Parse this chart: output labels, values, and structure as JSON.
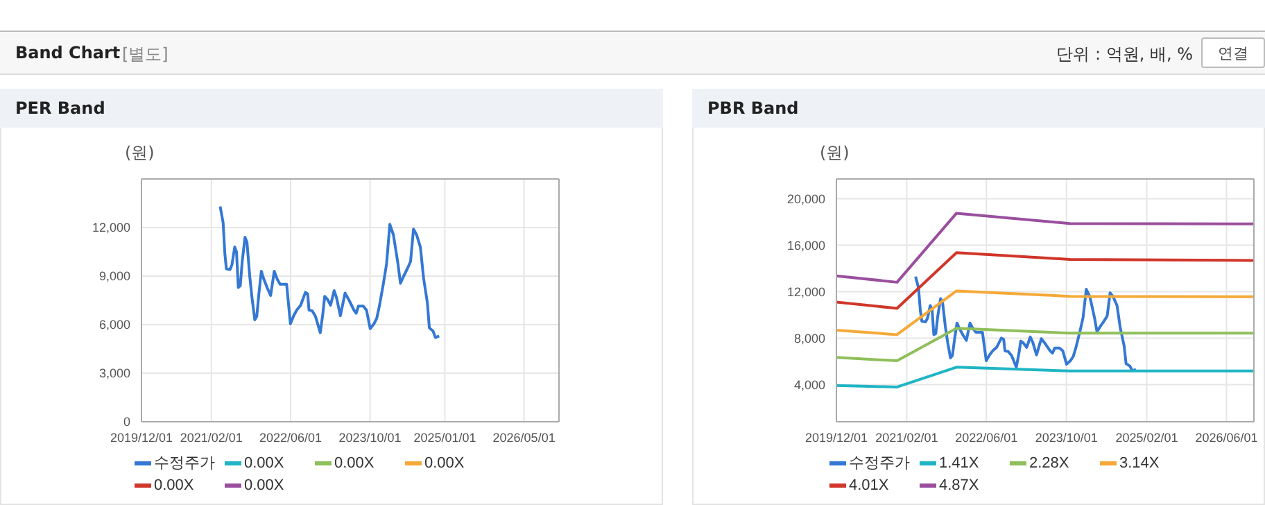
{
  "chart_data": [
    {
      "type": "line",
      "title": "PER Band",
      "ylabel": "(원)",
      "annotations": [
        "Band Chart",
        "[별도]",
        "단위 : 억원, 배, %",
        "연결"
      ],
      "xlim": [
        "2019-12-01",
        "2026-12-01"
      ],
      "xticks": [
        {
          "value": "2019-12-01",
          "label": "2019/12/01"
        },
        {
          "value": "2021-02-01",
          "label": "2021/02/01"
        },
        {
          "value": "2022-06-01",
          "label": "2022/06/01"
        },
        {
          "value": "2023-10-01",
          "label": "2023/10/01"
        },
        {
          "value": "2025-01-01",
          "label": "2025/01/01"
        },
        {
          "value": "2026-05-01",
          "label": "2026/05/01"
        }
      ],
      "ylim": [
        0,
        15000
      ],
      "yticks": [
        0,
        {
          "value": 3000,
          "label": "3,000"
        },
        {
          "value": 6000,
          "label": "6,000"
        },
        {
          "value": 9000,
          "label": "9,000"
        },
        {
          "value": 12000,
          "label": "12,000"
        }
      ],
      "grid": true,
      "legend": "bottom",
      "series": [
        {
          "name": "수정주가",
          "color": "#3478d4",
          "x": [
            "2021-03-27",
            "2021-04-14",
            "2021-04-25",
            "2021-05-04",
            "2021-05-26",
            "2021-06-07",
            "2021-06-24",
            "2021-07-05",
            "2021-07-16",
            "2021-07-28",
            "2021-08-09",
            "2021-08-26",
            "2021-09-07",
            "2021-09-24",
            "2021-10-08",
            "2021-10-25",
            "2021-11-06",
            "2021-11-20",
            "2021-12-04",
            "2021-12-18",
            "2022-01-10",
            "2022-01-30",
            "2022-02-21",
            "2022-03-12",
            "2022-03-29",
            "2022-05-08",
            "2022-05-31",
            "2022-06-20",
            "2022-07-09",
            "2022-08-02",
            "2022-08-31",
            "2022-09-14",
            "2022-09-22",
            "2022-10-12",
            "2022-11-01",
            "2022-11-30",
            "2022-12-16",
            "2022-12-27",
            "2023-01-14",
            "2023-02-01",
            "2023-02-23",
            "2023-03-10",
            "2023-04-02",
            "2023-05-01",
            "2023-05-26",
            "2023-06-24",
            "2023-07-08",
            "2023-07-22",
            "2023-08-20",
            "2023-09-09",
            "2023-10-02",
            "2023-10-25",
            "2023-11-11",
            "2023-11-28",
            "2023-12-21",
            "2024-01-10",
            "2024-01-30",
            "2024-02-21",
            "2024-03-20",
            "2024-04-04",
            "2024-04-24",
            "2024-05-16",
            "2024-06-05",
            "2024-06-23",
            "2024-07-12",
            "2024-08-04",
            "2024-08-24",
            "2024-09-16",
            "2024-09-28",
            "2024-10-21",
            "2024-11-04",
            "2024-11-27"
          ],
          "values": [
            13300,
            12300,
            10350,
            9450,
            9400,
            9700,
            10800,
            10500,
            8300,
            8400,
            9900,
            11400,
            11100,
            9000,
            7650,
            6300,
            6500,
            8000,
            9300,
            8850,
            8250,
            7800,
            9300,
            8800,
            8500,
            8500,
            6050,
            6550,
            6900,
            7200,
            8000,
            7900,
            6900,
            6850,
            6500,
            5500,
            6700,
            7750,
            7550,
            7200,
            8100,
            7650,
            6550,
            7950,
            7500,
            6900,
            6700,
            7150,
            7150,
            6900,
            5750,
            6050,
            6400,
            7200,
            8500,
            9750,
            12200,
            11550,
            9750,
            8550,
            9000,
            9450,
            9900,
            11900,
            11550,
            10800,
            8850,
            7350,
            5800,
            5600,
            5200,
            5300
          ]
        },
        {
          "name": "0.00X",
          "color": "#1fb5c5"
        },
        {
          "name": "0.00X",
          "color": "#8fbf5a"
        },
        {
          "name": "0.00X",
          "color": "#f5a938"
        },
        {
          "name": "0.00X",
          "color": "#d0362a"
        },
        {
          "name": "0.00X",
          "color": "#9a4f9e"
        }
      ]
    },
    {
      "type": "line",
      "title": "PBR Band",
      "ylabel": "(원)",
      "xlim": [
        "2019-12-01",
        "2026-11-15"
      ],
      "xticks": [
        {
          "value": "2019-12-01",
          "label": "2019/12/01"
        },
        {
          "value": "2021-02-01",
          "label": "2021/02/01"
        },
        {
          "value": "2022-06-01",
          "label": "2022/06/01"
        },
        {
          "value": "2023-10-01",
          "label": "2023/10/01"
        },
        {
          "value": "2025-02-01",
          "label": "2025/02/01"
        },
        {
          "value": "2026-06-01",
          "label": "2026/06/01"
        }
      ],
      "ylim": [
        800,
        21700
      ],
      "yticks": [
        {
          "value": 4000,
          "label": "4,000"
        },
        {
          "value": 8000,
          "label": "8,000"
        },
        {
          "value": 12000,
          "label": "12,000"
        },
        {
          "value": 16000,
          "label": "16,000"
        },
        {
          "value": 20000,
          "label": "20,000"
        }
      ],
      "grid": true,
      "legend": "bottom",
      "series": [
        {
          "name": "수정주가",
          "color": "#3478d4",
          "x": [
            "2021-03-27",
            "2021-04-14",
            "2021-04-25",
            "2021-05-04",
            "2021-05-26",
            "2021-06-07",
            "2021-06-24",
            "2021-07-05",
            "2021-07-16",
            "2021-07-28",
            "2021-08-09",
            "2021-08-26",
            "2021-09-07",
            "2021-09-24",
            "2021-10-08",
            "2021-10-25",
            "2021-11-06",
            "2021-11-20",
            "2021-12-04",
            "2021-12-18",
            "2022-01-10",
            "2022-01-30",
            "2022-02-21",
            "2022-03-12",
            "2022-03-29",
            "2022-05-08",
            "2022-05-31",
            "2022-06-20",
            "2022-07-09",
            "2022-08-02",
            "2022-08-31",
            "2022-09-14",
            "2022-09-22",
            "2022-10-12",
            "2022-11-01",
            "2022-11-30",
            "2022-12-16",
            "2022-12-27",
            "2023-01-14",
            "2023-02-01",
            "2023-02-23",
            "2023-03-10",
            "2023-04-02",
            "2023-05-01",
            "2023-05-26",
            "2023-06-24",
            "2023-07-08",
            "2023-07-22",
            "2023-08-20",
            "2023-09-09",
            "2023-10-02",
            "2023-10-25",
            "2023-11-11",
            "2023-11-28",
            "2023-12-21",
            "2024-01-10",
            "2024-01-30",
            "2024-02-21",
            "2024-03-20",
            "2024-04-04",
            "2024-04-24",
            "2024-05-16",
            "2024-06-05",
            "2024-06-23",
            "2024-07-12",
            "2024-08-04",
            "2024-08-24",
            "2024-09-16",
            "2024-09-28",
            "2024-10-21",
            "2024-11-04",
            "2024-11-27"
          ],
          "values": [
            13300,
            12300,
            10350,
            9450,
            9400,
            9700,
            10800,
            10500,
            8300,
            8400,
            9900,
            11400,
            11100,
            9000,
            7650,
            6300,
            6500,
            8000,
            9300,
            8850,
            8250,
            7800,
            9300,
            8800,
            8500,
            8500,
            6050,
            6550,
            6900,
            7200,
            8000,
            7900,
            6900,
            6850,
            6500,
            5500,
            6700,
            7750,
            7550,
            7200,
            8100,
            7650,
            6550,
            7950,
            7500,
            6900,
            6700,
            7150,
            7150,
            6900,
            5750,
            6050,
            6400,
            7200,
            8500,
            9750,
            12200,
            11550,
            9750,
            8550,
            9000,
            9450,
            9900,
            11900,
            11550,
            10800,
            8850,
            7350,
            5800,
            5600,
            5200,
            5300
          ]
        },
        {
          "name": "1.41X",
          "color": "#1fb5c5",
          "x": [
            "2019-12-01",
            "2020-12-04",
            "2021-12-01",
            "2023-10-21",
            "2026-11-15"
          ],
          "values": [
            3920,
            3790,
            5500,
            5170,
            5170
          ]
        },
        {
          "name": "2.28X",
          "color": "#8fbf5a",
          "x": [
            "2019-12-01",
            "2020-12-04",
            "2021-12-01",
            "2023-10-21",
            "2026-11-15"
          ],
          "values": [
            6340,
            6050,
            8850,
            8430,
            8430
          ]
        },
        {
          "name": "3.14X",
          "color": "#f5a938",
          "x": [
            "2019-12-01",
            "2020-12-04",
            "2021-12-01",
            "2023-10-21",
            "2026-11-15"
          ],
          "values": [
            8680,
            8300,
            12060,
            11600,
            11560
          ]
        },
        {
          "name": "4.01X",
          "color": "#d0362a",
          "x": [
            "2019-12-01",
            "2020-12-04",
            "2021-12-01",
            "2023-10-21",
            "2026-11-15"
          ],
          "values": [
            11100,
            10560,
            15360,
            14780,
            14690
          ]
        },
        {
          "name": "4.87X",
          "color": "#9a4f9e",
          "x": [
            "2019-12-01",
            "2020-12-04",
            "2021-12-01",
            "2023-10-21",
            "2026-11-15"
          ],
          "values": [
            13360,
            12810,
            18750,
            17870,
            17830
          ]
        }
      ]
    }
  ]
}
